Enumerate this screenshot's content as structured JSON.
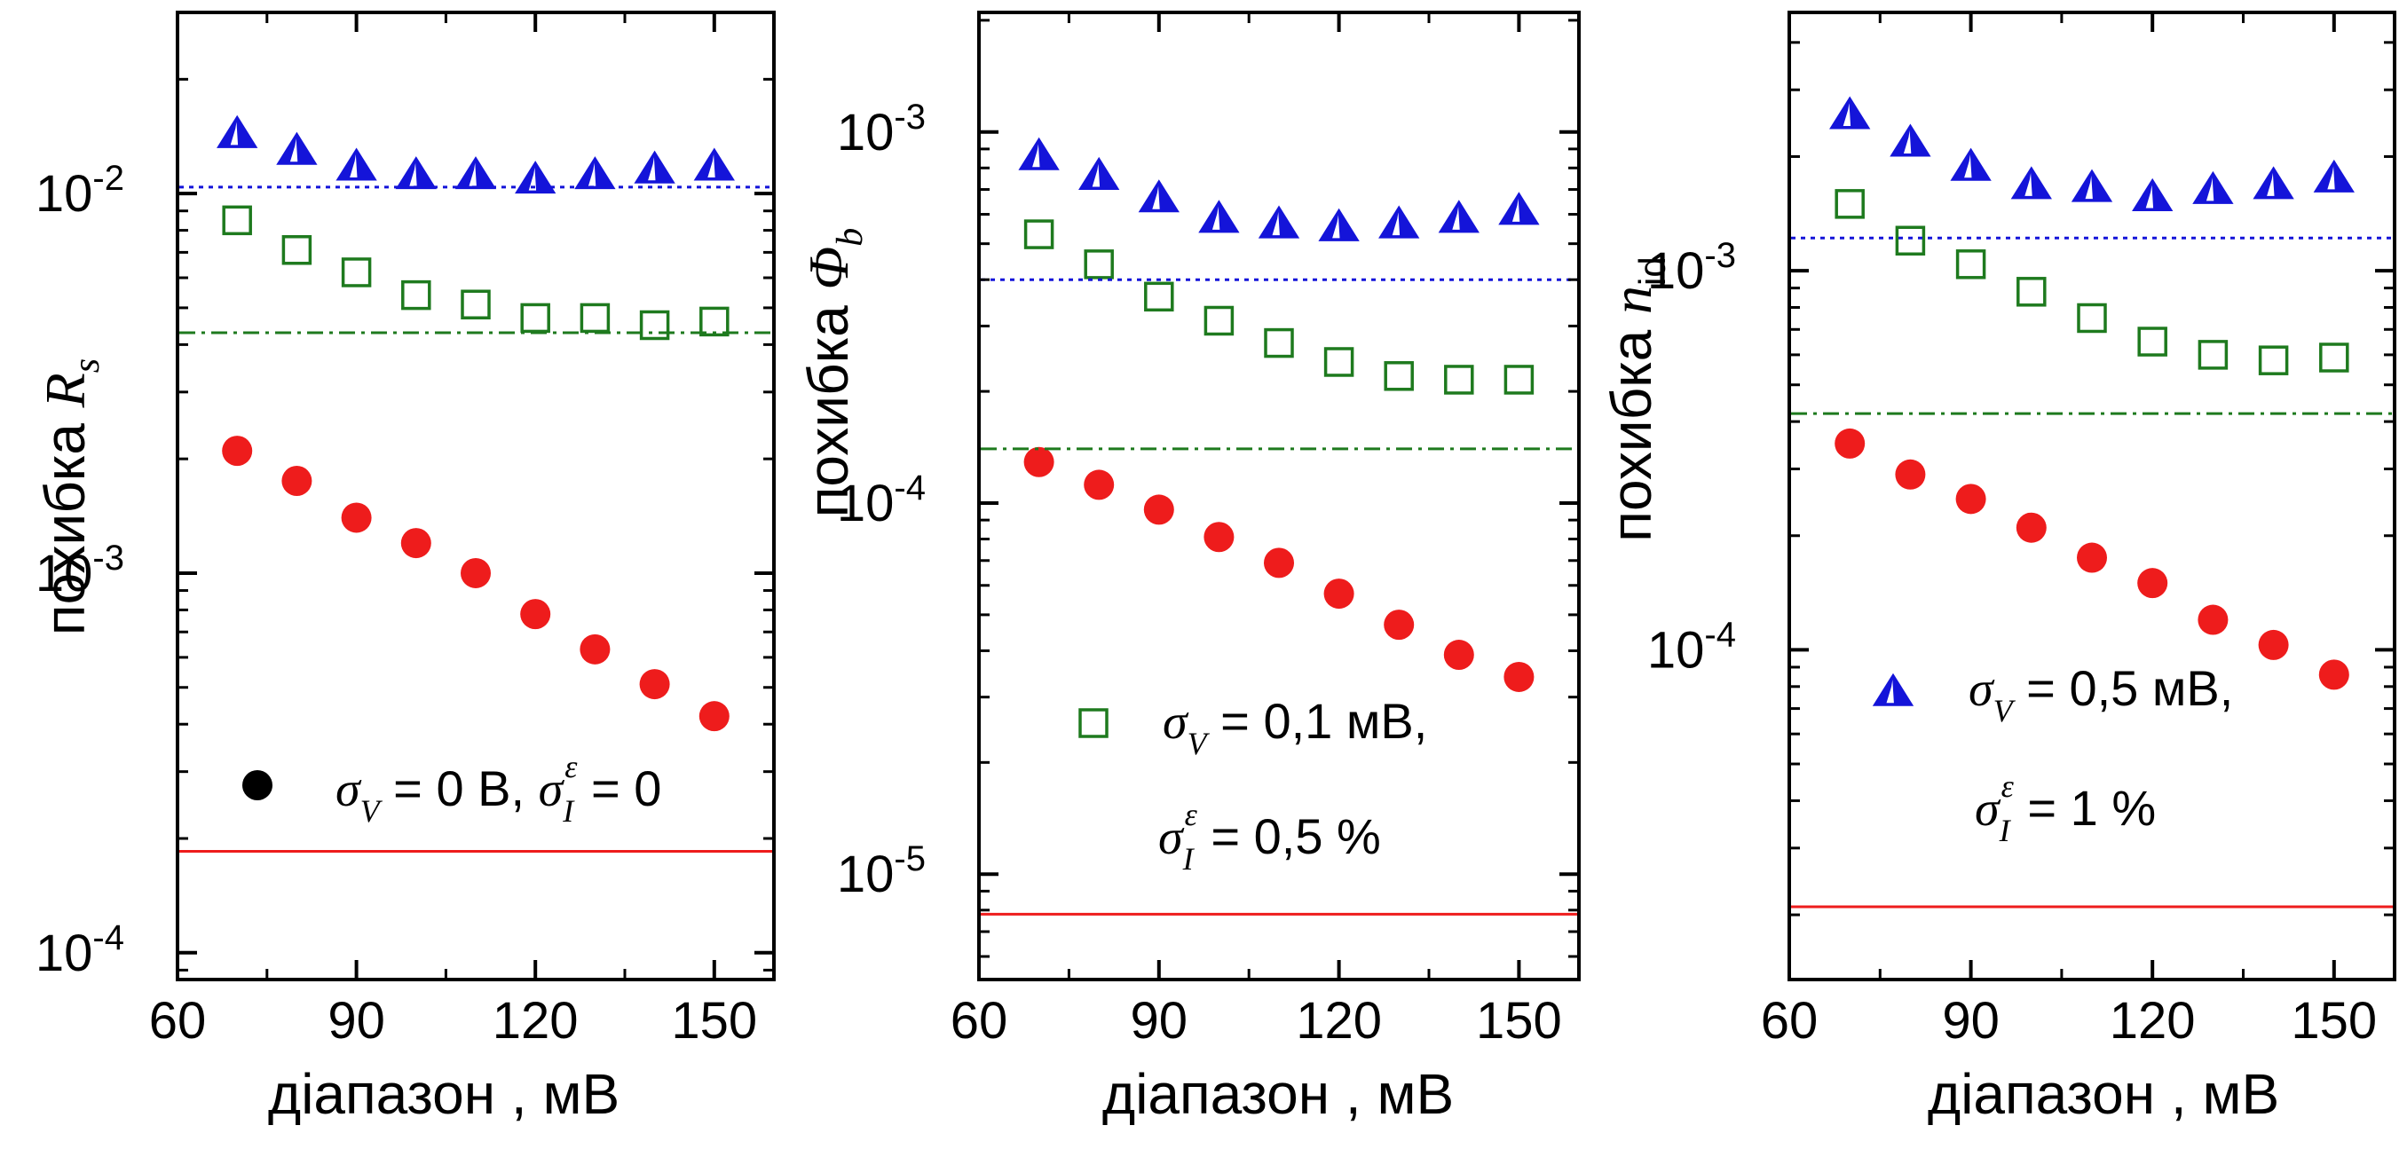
{
  "colors": {
    "red": "#ee1c1c",
    "green": "#1e7a1e",
    "blue": "#1414d9",
    "line_red": "#ee1c1c"
  },
  "legend": {
    "s1": {
      "marker": "filled-circle",
      "sigma": "σ",
      "sub_v": "V",
      "text_a": " = 0 В,  ",
      "sup_eps": "ε",
      "sub_i": "I",
      "text_b": " = 0"
    },
    "s2": {
      "marker": "open-square",
      "sigma": "σ",
      "sub_v": "V",
      "text_a": " = 0,1 мВ,",
      "sup_eps": "ε",
      "sub_i": "I",
      "text_b": " = 0,5 %"
    },
    "s3": {
      "marker": "half-filled-triangle",
      "sigma": "σ",
      "sub_v": "V",
      "text_a": " = 0,5 мВ,",
      "sup_eps": "ε",
      "sub_i": "I",
      "text_b": " = 1 %"
    }
  },
  "chart_data": [
    {
      "type": "scatter",
      "yscale": "log",
      "xlabel": "діапазон ,  мВ",
      "ylabel_prefix": "похибка ",
      "ylabel_symbol": "R",
      "ylabel_sub": "s",
      "xlim": [
        60,
        160
      ],
      "ylim": [
        8.5e-05,
        0.03
      ],
      "xticks": [
        "60",
        "90",
        "120",
        "150"
      ],
      "xtick_values": [
        60,
        90,
        120,
        150
      ],
      "ytick_mantissa": "10",
      "yticks": [
        {
          "value": 0.0001,
          "exp": "-4"
        },
        {
          "value": 0.001,
          "exp": "-3"
        },
        {
          "value": 0.01,
          "exp": "-2"
        }
      ],
      "x": [
        70,
        80,
        90,
        100,
        110,
        120,
        130,
        140,
        150
      ],
      "series": [
        {
          "marker": "circle",
          "values": [
            0.0021,
            0.00175,
            0.0014,
            0.0012,
            0.001,
            0.00078,
            0.00063,
            0.00051,
            0.00042
          ]
        },
        {
          "marker": "square",
          "values": [
            0.0085,
            0.0071,
            0.0062,
            0.0054,
            0.0051,
            0.0047,
            0.0047,
            0.0045,
            0.0046
          ]
        },
        {
          "marker": "triangle",
          "values": [
            0.0145,
            0.0131,
            0.0119,
            0.0113,
            0.0113,
            0.011,
            0.0113,
            0.0117,
            0.0119
          ]
        }
      ],
      "hlines": [
        {
          "style": "solid",
          "color": "red",
          "value": 0.000185
        },
        {
          "style": "dashdot",
          "color": "green",
          "value": 0.0043
        },
        {
          "style": "dotted",
          "color": "blue",
          "value": 0.0104
        }
      ],
      "legend_series": "s1"
    },
    {
      "type": "scatter",
      "yscale": "log",
      "xlabel": "діапазон ,  мВ",
      "ylabel_prefix": "похибка ",
      "ylabel_symbol": "Φ",
      "ylabel_sub": "b",
      "xlim": [
        60,
        160
      ],
      "ylim": [
        5.2e-06,
        0.0021
      ],
      "xticks": [
        "60",
        "90",
        "120",
        "150"
      ],
      "xtick_values": [
        60,
        90,
        120,
        150
      ],
      "ytick_mantissa": "10",
      "yticks": [
        {
          "value": 1e-05,
          "exp": "-5"
        },
        {
          "value": 0.0001,
          "exp": "-4"
        },
        {
          "value": 0.001,
          "exp": "-3"
        }
      ],
      "x": [
        70,
        80,
        90,
        100,
        110,
        120,
        130,
        140,
        150
      ],
      "series": [
        {
          "marker": "circle",
          "values": [
            0.000129,
            0.000112,
            9.6e-05,
            8.1e-05,
            6.9e-05,
            5.7e-05,
            4.7e-05,
            3.9e-05,
            3.4e-05
          ]
        },
        {
          "marker": "square",
          "values": [
            0.00053,
            0.00044,
            0.00036,
            0.00031,
            0.00027,
            0.00024,
            0.00022,
            0.000215,
            0.000215
          ]
        },
        {
          "marker": "triangle",
          "values": [
            0.00087,
            0.00077,
            0.00067,
            0.00059,
            0.00057,
            0.00056,
            0.00057,
            0.00059,
            0.00062
          ]
        }
      ],
      "hlines": [
        {
          "style": "solid",
          "color": "red",
          "value": 7.8e-06
        },
        {
          "style": "dashdot",
          "color": "green",
          "value": 0.00014
        },
        {
          "style": "dotted",
          "color": "blue",
          "value": 0.0004
        }
      ],
      "legend_series": "s2"
    },
    {
      "type": "scatter",
      "yscale": "log",
      "xlabel": "діапазон ,  мВ",
      "ylabel_prefix": "похибка ",
      "ylabel_symbol": "n",
      "ylabel_sub": "id",
      "xlim": [
        60,
        160
      ],
      "ylim": [
        1.35e-05,
        0.0048
      ],
      "xticks": [
        "60",
        "90",
        "120",
        "150"
      ],
      "xtick_values": [
        60,
        90,
        120,
        150
      ],
      "ytick_mantissa": "10",
      "yticks": [
        {
          "value": 0.0001,
          "exp": "-4"
        },
        {
          "value": 0.001,
          "exp": "-3"
        }
      ],
      "x": [
        70,
        80,
        90,
        100,
        110,
        120,
        130,
        140,
        150
      ],
      "series": [
        {
          "marker": "circle",
          "values": [
            0.00035,
            0.00029,
            0.00025,
            0.00021,
            0.000175,
            0.00015,
            0.00012,
            0.000103,
            8.6e-05
          ]
        },
        {
          "marker": "square",
          "values": [
            0.0015,
            0.0012,
            0.00104,
            0.00088,
            0.00075,
            0.00065,
            0.0006,
            0.00058,
            0.00059
          ]
        },
        {
          "marker": "triangle",
          "values": [
            0.0026,
            0.0022,
            0.0019,
            0.0017,
            0.00167,
            0.00158,
            0.00165,
            0.0017,
            0.00177
          ]
        }
      ],
      "hlines": [
        {
          "style": "solid",
          "color": "red",
          "value": 2.1e-05
        },
        {
          "style": "dashdot",
          "color": "green",
          "value": 0.00042
        },
        {
          "style": "dotted",
          "color": "blue",
          "value": 0.00122
        }
      ],
      "legend_series": "s3"
    }
  ]
}
